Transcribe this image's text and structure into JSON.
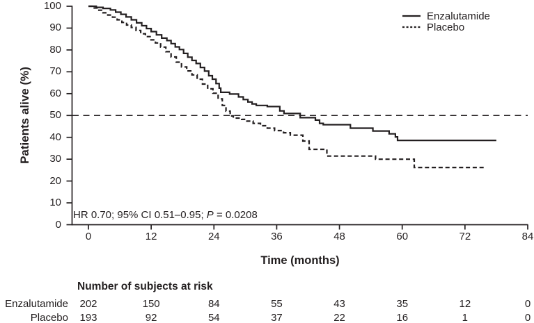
{
  "figure": {
    "background": "#ffffff",
    "ink_color": "#231f20"
  },
  "chart_data": {
    "type": "line",
    "subtype": "kaplan-meier-step-curve",
    "title": "",
    "xlabel": "Time (months)",
    "ylabel": "Patients alive (%)",
    "xlim": [
      0,
      84
    ],
    "ylim": [
      0,
      100
    ],
    "x_ticks": [
      0,
      12,
      24,
      36,
      48,
      60,
      72,
      84
    ],
    "y_ticks": [
      0,
      10,
      20,
      30,
      40,
      50,
      60,
      70,
      80,
      90,
      100
    ],
    "grid": false,
    "legend_position": "top-right",
    "reference_line": {
      "y": 50,
      "style": "dashed"
    },
    "series": [
      {
        "name": "Enzalutamide",
        "style": "solid",
        "color": "#231f20",
        "points": [
          [
            0,
            100
          ],
          [
            1.5,
            99.5
          ],
          [
            2.8,
            99
          ],
          [
            4.2,
            98.3
          ],
          [
            5.2,
            97.3
          ],
          [
            6.2,
            96.3
          ],
          [
            7.2,
            95.1
          ],
          [
            8.2,
            93.8
          ],
          [
            9.2,
            92.4
          ],
          [
            10.2,
            91.1
          ],
          [
            11.1,
            89.8
          ],
          [
            12,
            88.4
          ],
          [
            13,
            86.9
          ],
          [
            14,
            85.4
          ],
          [
            15,
            84.3
          ],
          [
            15.8,
            82.9
          ],
          [
            16.6,
            81.4
          ],
          [
            17.4,
            80.2
          ],
          [
            18.2,
            78.4
          ],
          [
            19,
            76.7
          ],
          [
            19.8,
            75.2
          ],
          [
            20.6,
            73.8
          ],
          [
            21.4,
            72
          ],
          [
            22.2,
            70.3
          ],
          [
            23,
            68.2
          ],
          [
            23.7,
            66.6
          ],
          [
            24.4,
            64.6
          ],
          [
            25,
            62.5
          ],
          [
            25.3,
            60.6
          ],
          [
            27,
            59.8
          ],
          [
            28.7,
            58.5
          ],
          [
            29.6,
            57.3
          ],
          [
            30.5,
            56.2
          ],
          [
            31.3,
            55.3
          ],
          [
            32.1,
            54.6
          ],
          [
            34.2,
            54.1
          ],
          [
            36.6,
            52.1
          ],
          [
            37.4,
            50.9
          ],
          [
            40.5,
            49
          ],
          [
            43.4,
            47.9
          ],
          [
            44.2,
            46.4
          ],
          [
            44.9,
            45.8
          ],
          [
            50.1,
            44.2
          ],
          [
            54.4,
            42.9
          ],
          [
            57.5,
            41.6
          ],
          [
            58.7,
            40.2
          ],
          [
            59.1,
            38.6
          ],
          [
            78,
            38.6
          ]
        ]
      },
      {
        "name": "Placebo",
        "style": "dashed",
        "color": "#231f20",
        "points": [
          [
            0,
            100
          ],
          [
            0.9,
            99.2
          ],
          [
            1.8,
            98.2
          ],
          [
            2.8,
            97
          ],
          [
            3.7,
            96
          ],
          [
            4.6,
            95
          ],
          [
            5.5,
            93.8
          ],
          [
            6.4,
            92.6
          ],
          [
            7.3,
            91.4
          ],
          [
            8.2,
            90.3
          ],
          [
            9.1,
            88.9
          ],
          [
            10,
            87.4
          ],
          [
            10.9,
            86.1
          ],
          [
            11.8,
            84.6
          ],
          [
            12.8,
            83.2
          ],
          [
            13.8,
            81.3
          ],
          [
            14.8,
            79.2
          ],
          [
            15.8,
            76.8
          ],
          [
            16.8,
            74.4
          ],
          [
            17.8,
            72.2
          ],
          [
            18.8,
            70.4
          ],
          [
            19.8,
            68.6
          ],
          [
            20.8,
            66.6
          ],
          [
            21.8,
            64.4
          ],
          [
            22.8,
            62.2
          ],
          [
            23.8,
            60.2
          ],
          [
            24.8,
            57.6
          ],
          [
            25.6,
            54.6
          ],
          [
            26.3,
            52
          ],
          [
            27.1,
            49.8
          ],
          [
            27.7,
            48.8
          ],
          [
            29.3,
            48.2
          ],
          [
            30.3,
            47.4
          ],
          [
            31.5,
            46.4
          ],
          [
            32.9,
            45.3
          ],
          [
            34.2,
            44.2
          ],
          [
            35.6,
            43.1
          ],
          [
            37.3,
            42.1
          ],
          [
            38.6,
            41
          ],
          [
            41,
            38.3
          ],
          [
            42.2,
            34.5
          ],
          [
            45.6,
            31.4
          ],
          [
            54.9,
            30
          ],
          [
            62.3,
            26.2
          ],
          [
            76,
            26.2
          ]
        ]
      }
    ]
  },
  "annotation": {
    "prefix": "HR 0.70; 95% CI 0.51–0.95; ",
    "p_label": "P",
    "p_value": " = 0.0208"
  },
  "risk_table": {
    "title": "Number of subjects at risk",
    "time_points": [
      0,
      12,
      24,
      36,
      48,
      60,
      72,
      84
    ],
    "rows": [
      {
        "label": "Enzalutamide",
        "counts": [
          202,
          150,
          84,
          55,
          43,
          35,
          12,
          0
        ]
      },
      {
        "label": "Placebo",
        "counts": [
          193,
          92,
          54,
          37,
          22,
          16,
          1,
          0
        ]
      }
    ]
  }
}
